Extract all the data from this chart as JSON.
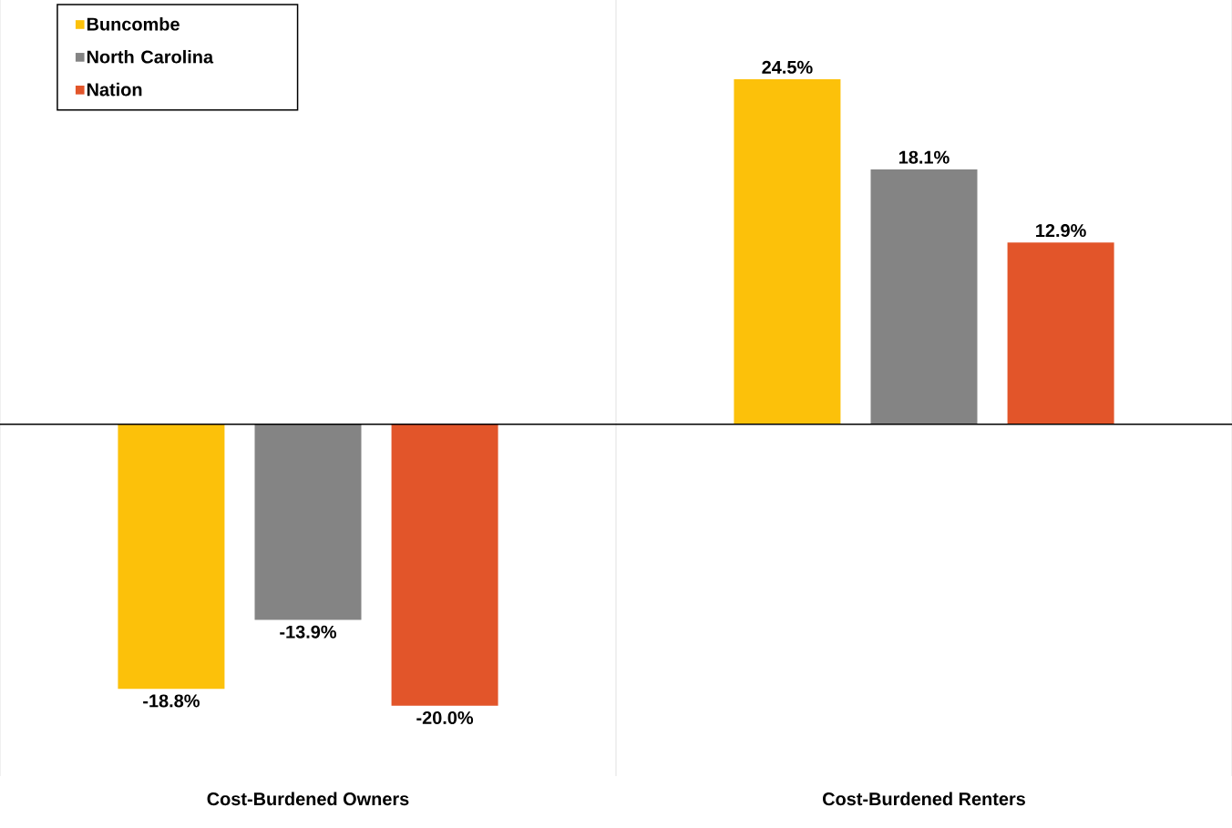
{
  "chart_data": {
    "type": "bar",
    "categories": [
      "Cost-Burdened Owners",
      "Cost-Burdened Renters"
    ],
    "series": [
      {
        "name": "Buncombe",
        "color": "#fcc10a",
        "values": [
          -18.8,
          24.5
        ],
        "value_labels": [
          "-18.8%",
          "24.5%"
        ]
      },
      {
        "name": "North Carolina",
        "color": "#848484",
        "values": [
          -13.9,
          18.1
        ],
        "value_labels": [
          "-13.9%",
          "18.1%"
        ]
      },
      {
        "name": "Nation",
        "color": "#e2552a",
        "values": [
          -20.0,
          12.9
        ],
        "value_labels": [
          "-20.0%",
          "12.9%"
        ]
      }
    ],
    "grid": "x",
    "legend": "top left"
  }
}
